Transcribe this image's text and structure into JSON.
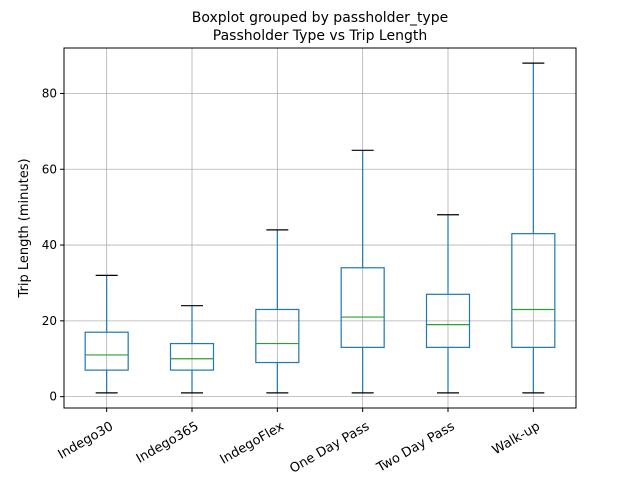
{
  "chart_data": {
    "type": "boxplot",
    "title": "Boxplot grouped by passholder_type",
    "subtitle": "Passholder Type vs Trip Length",
    "xlabel": "",
    "ylabel": "Trip Length (minutes)",
    "ylim": [
      -3,
      92
    ],
    "yticks": [
      0,
      20,
      40,
      60,
      80
    ],
    "grid": true,
    "categories": [
      "Indego30",
      "Indego365",
      "IndegoFlex",
      "One Day Pass",
      "Two Day Pass",
      "Walk-up"
    ],
    "boxes": [
      {
        "category": "Indego30",
        "whisker_low": 1,
        "q1": 7,
        "median": 11,
        "q3": 17,
        "whisker_high": 32
      },
      {
        "category": "Indego365",
        "whisker_low": 1,
        "q1": 7,
        "median": 10,
        "q3": 14,
        "whisker_high": 24
      },
      {
        "category": "IndegoFlex",
        "whisker_low": 1,
        "q1": 9,
        "median": 14,
        "q3": 23,
        "whisker_high": 44
      },
      {
        "category": "One Day Pass",
        "whisker_low": 1,
        "q1": 13,
        "median": 21,
        "q3": 34,
        "whisker_high": 65
      },
      {
        "category": "Two Day Pass",
        "whisker_low": 1,
        "q1": 13,
        "median": 19,
        "q3": 27,
        "whisker_high": 48
      },
      {
        "category": "Walk-up",
        "whisker_low": 1,
        "q1": 13,
        "median": 23,
        "q3": 43,
        "whisker_high": 88
      }
    ],
    "colors": {
      "box": "#1f77b4",
      "median": "#2ca02c",
      "cap": "#000000",
      "grid": "#b0b0b0"
    }
  }
}
